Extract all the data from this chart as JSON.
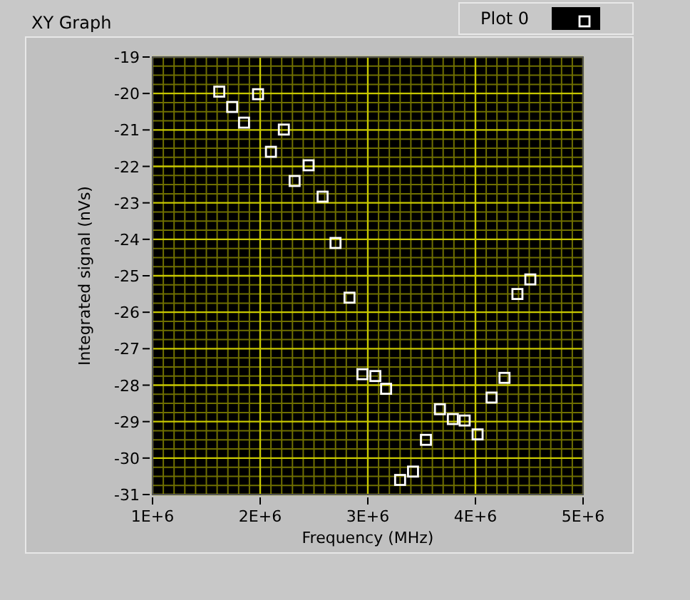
{
  "chart_data": {
    "type": "scatter",
    "title": "XY Graph",
    "xlabel": "Frequency (MHz)",
    "ylabel": "Integrated signal (nVs)",
    "series": [
      {
        "name": "Plot 0",
        "color": "#ffffff",
        "x": [
          1620000,
          1740000,
          1850000,
          1980000,
          2100000,
          2220000,
          2320000,
          2450000,
          2580000,
          2700000,
          2830000,
          2950000,
          3070000,
          3170000,
          3300000,
          3420000,
          3540000,
          3670000,
          3790000,
          3900000,
          4020000,
          4150000,
          4270000,
          4390000,
          4510000
        ],
        "values": [
          -19.95,
          -20.37,
          -20.8,
          -20.02,
          -21.6,
          -20.99,
          -22.4,
          -21.97,
          -22.83,
          -24.1,
          -25.6,
          -27.7,
          -27.75,
          -28.1,
          -30.6,
          -30.37,
          -29.5,
          -28.66,
          -28.93,
          -28.97,
          -29.35,
          -28.34,
          -27.8,
          -25.5,
          -25.1
        ]
      }
    ],
    "xlim": [
      1000000,
      5000000
    ],
    "xticks": [
      {
        "value": 1000000,
        "label": "1E+6"
      },
      {
        "value": 1100000,
        "label": null
      },
      {
        "value": 1200000,
        "label": null
      },
      {
        "value": 1300000,
        "label": null
      },
      {
        "value": 1400000,
        "label": null
      },
      {
        "value": 1500000,
        "label": null
      },
      {
        "value": 1600000,
        "label": null
      },
      {
        "value": 1700000,
        "label": null
      },
      {
        "value": 1800000,
        "label": null
      },
      {
        "value": 1900000,
        "label": null
      },
      {
        "value": 2000000,
        "label": "2E+6"
      },
      {
        "value": 2100000,
        "label": null
      },
      {
        "value": 2200000,
        "label": null
      },
      {
        "value": 2300000,
        "label": null
      },
      {
        "value": 2400000,
        "label": null
      },
      {
        "value": 2500000,
        "label": null
      },
      {
        "value": 2600000,
        "label": null
      },
      {
        "value": 2700000,
        "label": null
      },
      {
        "value": 2800000,
        "label": null
      },
      {
        "value": 2900000,
        "label": null
      },
      {
        "value": 3000000,
        "label": "3E+6"
      },
      {
        "value": 3100000,
        "label": null
      },
      {
        "value": 3200000,
        "label": null
      },
      {
        "value": 3300000,
        "label": null
      },
      {
        "value": 3400000,
        "label": null
      },
      {
        "value": 3500000,
        "label": null
      },
      {
        "value": 3600000,
        "label": null
      },
      {
        "value": 3700000,
        "label": null
      },
      {
        "value": 3800000,
        "label": null
      },
      {
        "value": 3900000,
        "label": null
      },
      {
        "value": 4000000,
        "label": "4E+6"
      },
      {
        "value": 4100000,
        "label": null
      },
      {
        "value": 4200000,
        "label": null
      },
      {
        "value": 4300000,
        "label": null
      },
      {
        "value": 4400000,
        "label": null
      },
      {
        "value": 4500000,
        "label": null
      },
      {
        "value": 4600000,
        "label": null
      },
      {
        "value": 4700000,
        "label": null
      },
      {
        "value": 4800000,
        "label": null
      },
      {
        "value": 4900000,
        "label": null
      },
      {
        "value": 5000000,
        "label": "5E+6"
      }
    ],
    "ylim": [
      -31,
      -19
    ],
    "yticks": [
      -31,
      {
        "value": -30.75,
        "label": null
      },
      {
        "value": -30.5,
        "label": null
      },
      {
        "value": -30.25,
        "label": null
      },
      -30,
      {
        "value": -29.75,
        "label": null
      },
      {
        "value": -29.5,
        "label": null
      },
      {
        "value": -29.25,
        "label": null
      },
      -29,
      {
        "value": -28.75,
        "label": null
      },
      {
        "value": -28.5,
        "label": null
      },
      {
        "value": -28.25,
        "label": null
      },
      -28,
      {
        "value": -27.75,
        "label": null
      },
      {
        "value": -27.5,
        "label": null
      },
      {
        "value": -27.25,
        "label": null
      },
      -27,
      {
        "value": -26.75,
        "label": null
      },
      {
        "value": -26.5,
        "label": null
      },
      {
        "value": -26.25,
        "label": null
      },
      -26,
      {
        "value": -25.75,
        "label": null
      },
      {
        "value": -25.5,
        "label": null
      },
      {
        "value": -25.25,
        "label": null
      },
      -25,
      {
        "value": -24.75,
        "label": null
      },
      {
        "value": -24.5,
        "label": null
      },
      {
        "value": -24.25,
        "label": null
      },
      -24,
      {
        "value": -23.75,
        "label": null
      },
      {
        "value": -23.5,
        "label": null
      },
      {
        "value": -23.25,
        "label": null
      },
      -23,
      {
        "value": -22.75,
        "label": null
      },
      {
        "value": -22.5,
        "label": null
      },
      {
        "value": -22.25,
        "label": null
      },
      -22,
      {
        "value": -21.75,
        "label": null
      },
      {
        "value": -21.5,
        "label": null
      },
      {
        "value": -21.25,
        "label": null
      },
      -21,
      {
        "value": -20.75,
        "label": null
      },
      {
        "value": -20.5,
        "label": null
      },
      {
        "value": -20.25,
        "label": null
      },
      -20,
      {
        "value": -19.75,
        "label": null
      },
      {
        "value": -19.5,
        "label": null
      },
      {
        "value": -19.25,
        "label": null
      },
      -19
    ],
    "grid": true,
    "marker": "square",
    "legend": "top right"
  }
}
